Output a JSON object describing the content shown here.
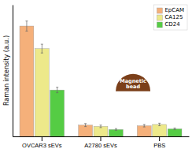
{
  "chart_data": {
    "type": "bar",
    "ylabel": "Raman intensity (a.u.)",
    "categories": [
      "OVCAR3 sEVs",
      "A2780 sEVs",
      "PBS"
    ],
    "series": [
      {
        "name": "EpCAM",
        "color": "#F5B07A",
        "values": [
          0.88,
          0.09,
          0.085
        ],
        "errors": [
          0.04,
          0.012,
          0.01
        ]
      },
      {
        "name": "CA125",
        "color": "#EDE98A",
        "values": [
          0.7,
          0.08,
          0.095
        ],
        "errors": [
          0.035,
          0.01,
          0.01
        ]
      },
      {
        "name": "CD24",
        "color": "#55CC44",
        "values": [
          0.37,
          0.055,
          0.06
        ],
        "errors": [
          0.022,
          0.007,
          0.007
        ]
      }
    ],
    "ylim": [
      0,
      1.05
    ],
    "yticks": [],
    "tick_labels": "x",
    "legend": "upper right",
    "annotations": [
      "Magnetic\nbead"
    ]
  }
}
